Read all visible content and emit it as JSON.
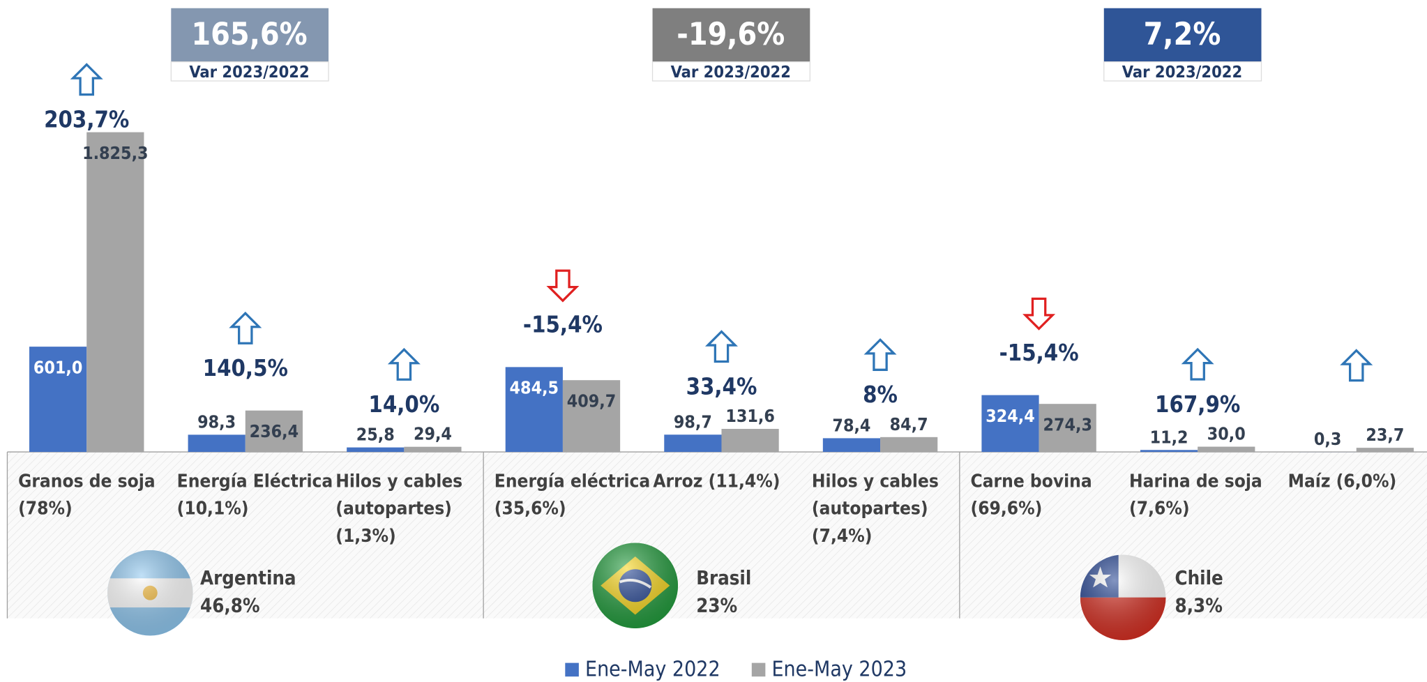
{
  "chart_data": {
    "type": "bar",
    "categories": [
      [
        "Granos de soja",
        "(78%)"
      ],
      [
        "Energía Eléctrica",
        "(10,1%)"
      ],
      [
        "Hilos y cables",
        "(autopartes)",
        "(1,3%)"
      ],
      [
        "Energía eléctrica",
        "(35,6%)"
      ],
      [
        "Arroz (11,4%)"
      ],
      [
        "Hilos y cables",
        "(autopartes)",
        "(7,4%)"
      ],
      [
        "Carne bovina",
        "(69,6%)"
      ],
      [
        "Harina de soja",
        "(7,6%)"
      ],
      [
        "Maíz (6,0%)"
      ]
    ],
    "series": [
      {
        "name": "Ene-May 2022",
        "color": "#4472c4",
        "values": [
          601.0,
          98.3,
          25.8,
          484.5,
          98.7,
          78.4,
          324.4,
          11.2,
          0.3
        ],
        "value_labels": [
          "601,0",
          "98,3",
          "25,8",
          "484,5",
          "98,7",
          "78,4",
          "324,4",
          "11,2",
          "0,3"
        ]
      },
      {
        "name": "Ene-May 2023",
        "color": "#a5a5a5",
        "values": [
          1825.3,
          236.4,
          29.4,
          409.7,
          131.6,
          84.7,
          274.3,
          30.0,
          23.7
        ],
        "value_labels": [
          "1.825,3",
          "236,4",
          "29,4",
          "409,7",
          "131,6",
          "84,7",
          "274,3",
          "30,0",
          "23,7"
        ]
      }
    ],
    "variations": [
      203.7,
      140.5,
      14.0,
      -15.4,
      33.4,
      8,
      -15.4,
      167.9,
      null
    ],
    "variation_labels": [
      "203,7%",
      "140,5%",
      "14,0%",
      "-15,4%",
      "33,4%",
      "8%",
      "-15,4%",
      "167,9%",
      null
    ],
    "arrows": [
      "up",
      "up",
      "up",
      "down",
      "up",
      "up",
      "down",
      "up",
      "up"
    ],
    "ylim": [
      0,
      1900
    ],
    "countries": [
      {
        "name": "Argentina",
        "share": {
          "value": 46.8,
          "label": "46,8%"
        },
        "variation": {
          "value": 165.6,
          "label": "165,6%"
        },
        "variation_caption": "Var 2023/2022",
        "color": "#8497b0"
      },
      {
        "name": "Brasil",
        "share": {
          "value": 23,
          "label": "23%"
        },
        "variation": {
          "value": -19.6,
          "label": "-19,6%"
        },
        "variation_caption": "Var 2023/2022",
        "color": "#7f7f7f"
      },
      {
        "name": "Chile",
        "share": {
          "value": 8.3,
          "label": "8,3%"
        },
        "variation": {
          "value": 7.2,
          "label": "7,2%"
        },
        "variation_caption": "Var 2023/2022",
        "color": "#2f5597"
      }
    ]
  }
}
